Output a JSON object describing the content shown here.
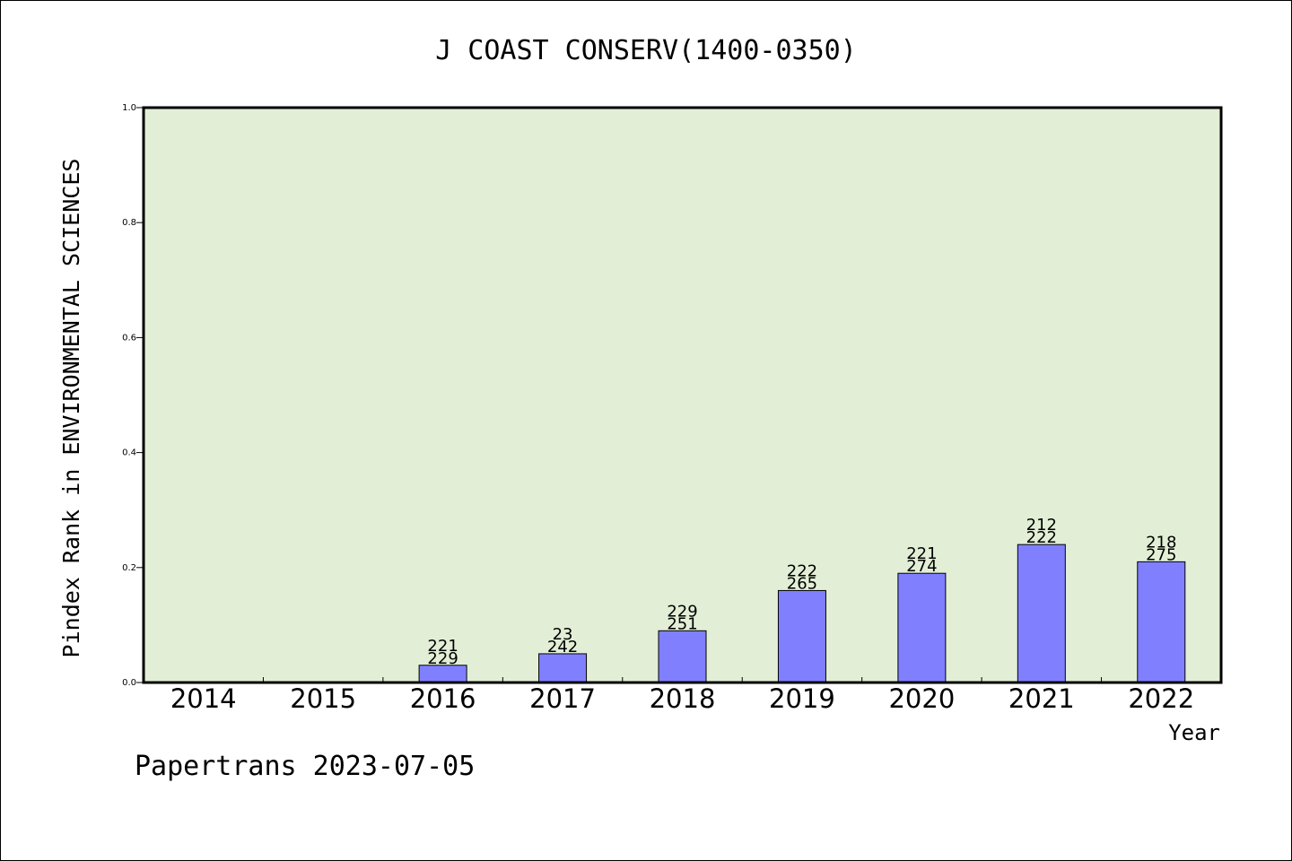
{
  "chart_data": {
    "type": "bar",
    "title": "J COAST CONSERV(1400-0350)",
    "xlabel": "Year",
    "ylabel": "Pindex Rank in ENVIRONMENTAL SCIENCES",
    "categories": [
      "2014",
      "2015",
      "2016",
      "2017",
      "2018",
      "2019",
      "2020",
      "2021",
      "2022"
    ],
    "values": [
      null,
      null,
      0.03,
      0.05,
      0.09,
      0.16,
      0.19,
      0.24,
      0.21
    ],
    "rank_labels": [
      null,
      null,
      "221",
      "23",
      "229",
      "222",
      "221",
      "212",
      "218"
    ],
    "total_labels": [
      null,
      null,
      "229",
      "242",
      "251",
      "265",
      "274",
      "222",
      "275"
    ],
    "ylim": [
      0,
      1.0
    ],
    "yticks": [
      "0.0",
      "0.2",
      "0.4",
      "0.6",
      "0.8",
      "1.0"
    ],
    "grid": false,
    "colors": {
      "bar": "#8080ff",
      "plot_background": "#e2efd6"
    }
  },
  "footer": "Papertrans 2023-07-05"
}
